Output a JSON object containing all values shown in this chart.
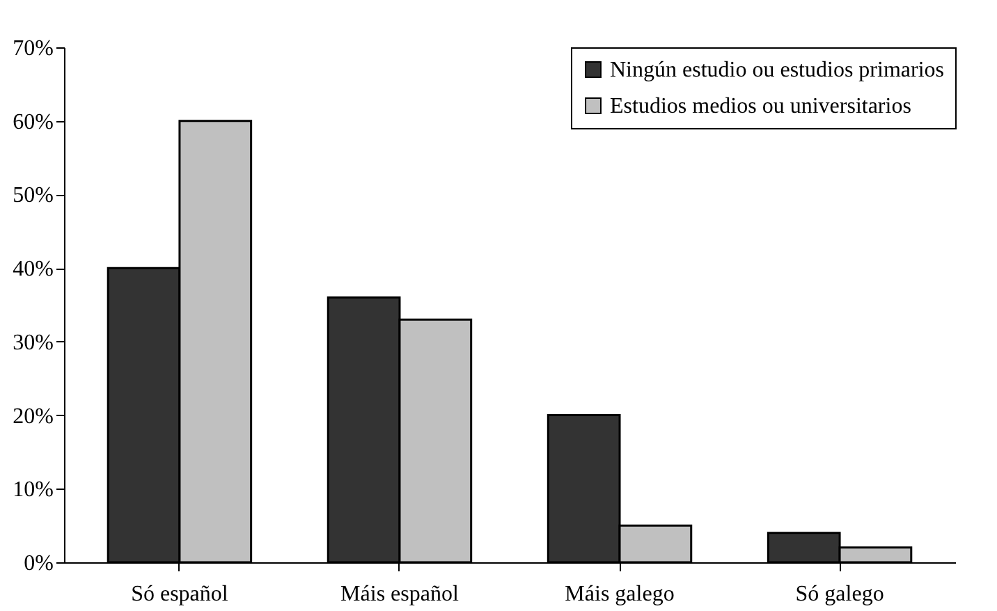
{
  "chart_data": {
    "type": "bar",
    "categories": [
      "Só español",
      "Máis español",
      "Máis galego",
      "Só galego"
    ],
    "series": [
      {
        "name": "Ningún estudio ou estudios primarios",
        "color": "#333333",
        "values": [
          40,
          36,
          20,
          4
        ]
      },
      {
        "name": "Estudios medios ou universitarios",
        "color": "#c0c0c0",
        "values": [
          60,
          33,
          5,
          2
        ]
      }
    ],
    "ylim": [
      0,
      70
    ],
    "yticks": [
      {
        "value": 0,
        "label": "0%"
      },
      {
        "value": 10,
        "label": "10%"
      },
      {
        "value": 20,
        "label": "20%"
      },
      {
        "value": 30,
        "label": "30%"
      },
      {
        "value": 40,
        "label": "40%"
      },
      {
        "value": 50,
        "label": "50%"
      },
      {
        "value": 60,
        "label": "60%"
      },
      {
        "value": 70,
        "label": "70%"
      }
    ],
    "grid": false,
    "legend": "top right"
  }
}
